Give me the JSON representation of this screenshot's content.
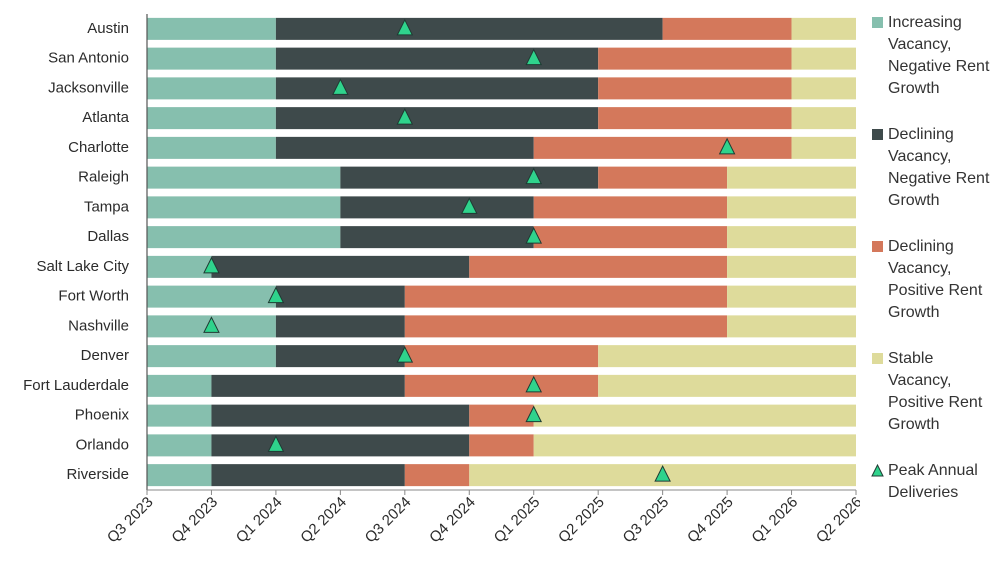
{
  "chart_data": {
    "type": "timeline",
    "categories": [
      "Austin",
      "San Antonio",
      "Jacksonville",
      "Atlanta",
      "Charlotte",
      "Raleigh",
      "Tampa",
      "Dallas",
      "Salt Lake City",
      "Fort Worth",
      "Nashville",
      "Denver",
      "Fort Lauderdale",
      "Phoenix",
      "Orlando",
      "Riverside"
    ],
    "series": [
      {
        "name": "Increasing Vacancy, Negative Rent Growth",
        "color": "#86bfae",
        "values": [
          2,
          2,
          2,
          2,
          2,
          3,
          3,
          3,
          1,
          2,
          2,
          2,
          1,
          1,
          1,
          1
        ]
      },
      {
        "name": "Declining Vacancy, Negative Rent Growth",
        "color": "#3e4a4b",
        "values": [
          6,
          5,
          5,
          5,
          4,
          4,
          3,
          3,
          4,
          2,
          2,
          2,
          3,
          4,
          4,
          3
        ]
      },
      {
        "name": "Declining Vacancy, Positive Rent Growth",
        "color": "#d4785b",
        "values": [
          2,
          3,
          3,
          3,
          4,
          2,
          3,
          3,
          4,
          5,
          5,
          3,
          3,
          1,
          1,
          1
        ]
      },
      {
        "name": "Stable Vacancy, Positive Rent Growth",
        "color": "#dedb9b",
        "values": [
          1,
          1,
          1,
          1,
          1,
          2,
          2,
          2,
          2,
          2,
          2,
          4,
          4,
          5,
          5,
          6
        ]
      }
    ],
    "markers": {
      "name": "Peak Annual Deliveries",
      "color": "#2fd38c",
      "values": [
        4,
        6,
        3,
        4,
        9,
        6,
        5,
        6,
        1,
        2,
        1,
        4,
        6,
        6,
        2,
        8
      ]
    },
    "xlim": [
      0,
      11
    ],
    "xticks": [
      {
        "value": 0,
        "label": "Q3 2023"
      },
      {
        "value": 1,
        "label": "Q4 2023"
      },
      {
        "value": 2,
        "label": "Q1 2024"
      },
      {
        "value": 3,
        "label": "Q2 2024"
      },
      {
        "value": 4,
        "label": "Q3 2024"
      },
      {
        "value": 5,
        "label": "Q4 2024"
      },
      {
        "value": 6,
        "label": "Q1 2025"
      },
      {
        "value": 7,
        "label": "Q2 2025"
      },
      {
        "value": 8,
        "label": "Q3 2025"
      },
      {
        "value": 9,
        "label": "Q4 2025"
      },
      {
        "value": 10,
        "label": "Q1 2026"
      },
      {
        "value": 11,
        "label": "Q2 2026"
      }
    ]
  }
}
